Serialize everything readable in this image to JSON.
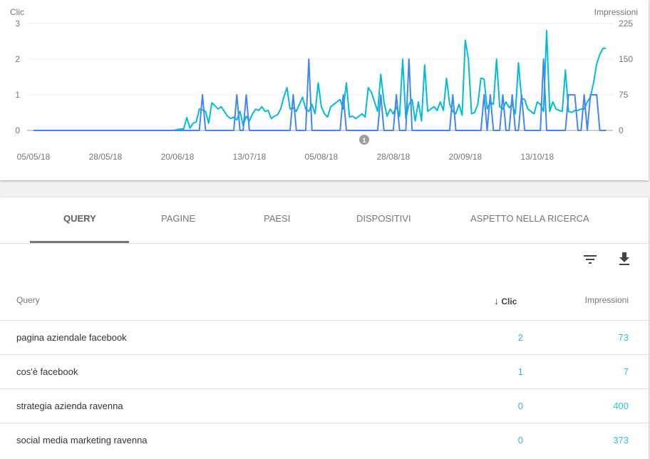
{
  "chart": {
    "left_axis_title": "Clic",
    "right_axis_title": "Impressioni",
    "annotation_label": "1"
  },
  "chart_data": {
    "type": "line",
    "left_axis": {
      "label": "Clic",
      "ticks": [
        "0",
        "1",
        "2",
        "3"
      ],
      "range": [
        0,
        3
      ]
    },
    "right_axis": {
      "label": "Impressioni",
      "ticks": [
        "0",
        "75",
        "150",
        "225"
      ],
      "range": [
        0,
        225
      ]
    },
    "x_tick_labels": [
      "05/05/18",
      "28/05/18",
      "20/06/18",
      "13/07/18",
      "05/08/18",
      "28/08/18",
      "20/09/18",
      "13/10/18"
    ],
    "x_tick_day_index": [
      0,
      23,
      46,
      69,
      92,
      115,
      138,
      161
    ],
    "grid": true,
    "series": [
      {
        "name": "Clic",
        "axis": "left",
        "color": "#4285f4",
        "values": [
          0,
          0,
          0,
          0,
          0,
          0,
          0,
          0,
          0,
          0,
          0,
          0,
          0,
          0,
          0,
          0,
          0,
          0,
          0,
          0,
          0,
          0,
          0,
          0,
          0,
          0,
          0,
          0,
          0,
          0,
          0,
          0,
          0,
          0,
          0,
          0,
          0,
          0,
          0,
          0,
          0,
          0,
          0,
          0,
          0,
          0,
          0,
          0,
          0,
          0,
          0,
          0,
          0,
          0,
          1,
          0,
          0,
          0,
          0,
          0,
          0,
          0,
          0,
          0,
          0,
          1,
          0,
          0,
          1,
          0,
          0,
          0,
          0,
          0,
          0,
          0,
          0,
          0,
          0,
          0,
          0,
          0,
          0,
          1,
          0,
          0,
          0,
          0,
          2,
          0,
          0,
          0,
          0,
          0,
          0,
          0,
          0,
          0,
          0,
          1,
          0,
          0,
          0,
          0,
          0,
          0,
          0,
          0,
          0,
          0,
          0,
          1,
          0,
          0,
          0,
          0,
          1,
          0,
          0,
          0,
          2,
          0,
          0,
          0,
          0,
          0,
          0,
          0,
          0,
          0,
          0,
          0,
          0,
          0,
          1,
          0,
          0,
          0,
          0,
          0,
          0,
          0,
          0,
          0,
          1,
          0,
          1,
          0,
          0,
          0,
          1,
          0,
          0,
          1,
          0,
          0,
          1,
          0,
          0,
          0,
          0,
          0,
          0,
          2,
          0,
          0,
          0,
          0,
          0,
          0,
          0,
          1,
          1,
          1,
          0,
          0,
          1,
          0,
          1,
          1,
          1,
          0,
          0,
          0
        ]
      },
      {
        "name": "Impressioni",
        "axis": "right",
        "color": "#00bcd4",
        "values": [
          0,
          0,
          0,
          0,
          0,
          0,
          0,
          0,
          0,
          0,
          0,
          0,
          0,
          0,
          0,
          0,
          0,
          0,
          0,
          0,
          0,
          0,
          0,
          0,
          0,
          0,
          0,
          0,
          0,
          0,
          0,
          0,
          0,
          0,
          0,
          0,
          0,
          0,
          0,
          0,
          0,
          0,
          0,
          0,
          0,
          0,
          2,
          3,
          3,
          27,
          5,
          15,
          18,
          45,
          43,
          40,
          15,
          58,
          52,
          45,
          50,
          40,
          30,
          25,
          28,
          22,
          40,
          10,
          30,
          20,
          35,
          45,
          42,
          50,
          40,
          42,
          25,
          30,
          33,
          45,
          70,
          90,
          45,
          48,
          40,
          55,
          70,
          45,
          40,
          55,
          35,
          100,
          50,
          35,
          28,
          50,
          55,
          60,
          65,
          45,
          100,
          28,
          30,
          25,
          30,
          35,
          28,
          90,
          80,
          60,
          40,
          118,
          60,
          30,
          45,
          35,
          50,
          30,
          150,
          25,
          55,
          65,
          20,
          60,
          20,
          138,
          40,
          45,
          50,
          42,
          60,
          42,
          110,
          55,
          40,
          35,
          55,
          32,
          190,
          150,
          35,
          38,
          55,
          110,
          108,
          45,
          60,
          55,
          150,
          50,
          45,
          60,
          48,
          55,
          35,
          142,
          68,
          65,
          45,
          40,
          35,
          60,
          55,
          40,
          210,
          40,
          60,
          45,
          42,
          40,
          127,
          40,
          38,
          42,
          42,
          45,
          45,
          60,
          70,
          100,
          140,
          160,
          173,
          173
        ]
      }
    ]
  },
  "tabs": [
    {
      "label": "QUERY",
      "active": true
    },
    {
      "label": "PAGINE"
    },
    {
      "label": "PAESI"
    },
    {
      "label": "DISPOSITIVI"
    },
    {
      "label": "ASPETTO NELLA RICERCA"
    }
  ],
  "toolbar": {
    "filter_icon": "filter-icon",
    "download_icon": "download-icon"
  },
  "table": {
    "headers": {
      "query": "Query",
      "clicks": "Clic",
      "impressions": "Impressioni",
      "sort_icon": "arrow-down-icon"
    },
    "rows": [
      {
        "query": "pagina aziendale facebook",
        "clicks": "2",
        "impressions": "73"
      },
      {
        "query": "cos'è facebook",
        "clicks": "1",
        "impressions": "7"
      },
      {
        "query": "strategia azienda ravenna",
        "clicks": "0",
        "impressions": "400"
      },
      {
        "query": "social media marketing ravenna",
        "clicks": "0",
        "impressions": "373"
      }
    ]
  }
}
